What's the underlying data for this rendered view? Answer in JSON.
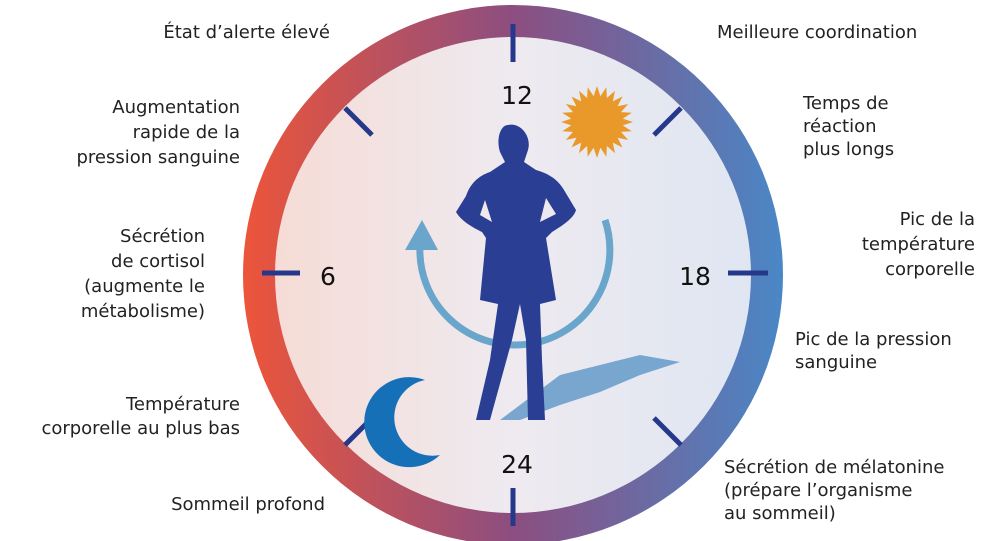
{
  "clock": {
    "hours": [
      "12",
      "6",
      "18",
      "24"
    ]
  },
  "annotations": [
    {
      "lines": [
        "État d’alerte élevé"
      ]
    },
    {
      "lines": [
        "Augmentation",
        "rapide de la",
        "pression sanguine"
      ]
    },
    {
      "lines": [
        "Sécrétion",
        "de cortisol",
        "(augmente le",
        "métabolisme)"
      ]
    },
    {
      "lines": [
        "Température",
        "corporelle au plus bas"
      ]
    },
    {
      "lines": [
        "Sommeil profond"
      ]
    },
    {
      "lines": [
        "Meilleure coordination"
      ]
    },
    {
      "lines": [
        "Temps de",
        "réaction",
        "plus longs"
      ]
    },
    {
      "lines": [
        "Pic de la",
        "température",
        "corporelle"
      ]
    },
    {
      "lines": [
        "Pic de la pression",
        "sanguine"
      ]
    },
    {
      "lines": [
        "Sécrétion de mélatonine",
        "(prépare l’organisme",
        "au sommeil)"
      ]
    }
  ]
}
